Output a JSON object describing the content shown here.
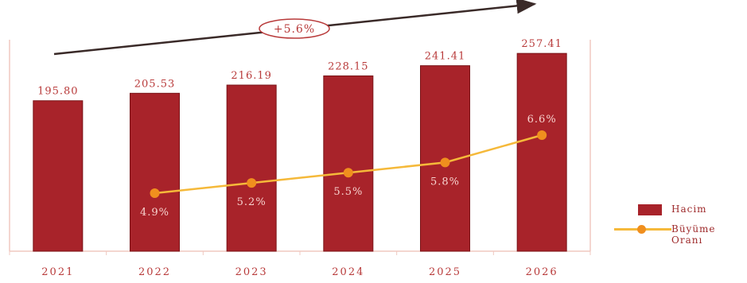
{
  "chart_data": {
    "type": "bar",
    "categories": [
      "2021",
      "2022",
      "2023",
      "2024",
      "2025",
      "2026"
    ],
    "series": [
      {
        "name": "Hacim",
        "type": "bar",
        "values": [
          195.8,
          205.53,
          216.19,
          228.15,
          241.41,
          257.41
        ],
        "labels": [
          "195.80",
          "205.53",
          "216.19",
          "228.15",
          "241.41",
          "257.41"
        ]
      },
      {
        "name": "Büyüme Oranı",
        "type": "line",
        "axis": "secondary",
        "values": [
          null,
          4.9,
          5.2,
          5.5,
          5.8,
          6.6
        ],
        "labels": [
          "",
          "4.9%",
          "5.2%",
          "5.5%",
          "5.8%",
          "6.6%"
        ]
      }
    ],
    "ylim": [
      0,
      270
    ],
    "y2lim": [
      0,
      30
    ],
    "annotation": "+5.6%",
    "legend_position": "right-bottom",
    "grid": false
  },
  "colors": {
    "bar": "#a8232a",
    "bar_edge": "#7a1418",
    "line": "#f5b93a",
    "marker": "#f08f1e",
    "text": "#b83a3a",
    "inside_label": "#f8d4d0",
    "axis": "#f0c8c0",
    "arrow": "#3a2a28"
  },
  "legend": {
    "items": [
      {
        "label": "Hacim",
        "kind": "bar"
      },
      {
        "label": "Büyüme Oranı",
        "kind": "line"
      }
    ]
  }
}
